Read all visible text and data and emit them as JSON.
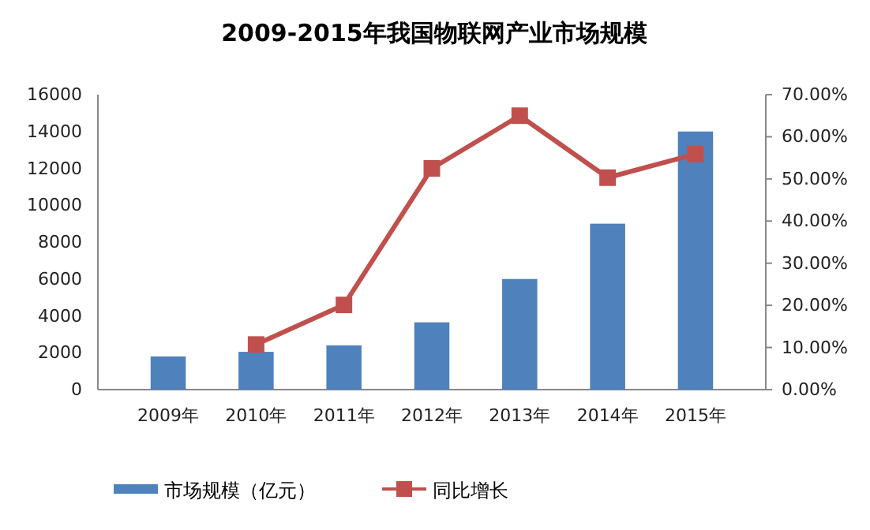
{
  "chart_data": {
    "type": "bar",
    "title": "2009-2015年我国物联网产业市场规模",
    "categories": [
      "2009年",
      "2010年",
      "2011年",
      "2012年",
      "2013年",
      "2014年",
      "2015年"
    ],
    "series": [
      {
        "name": "市场规模（亿元）",
        "color": "#4f81bd",
        "values": [
          1800,
          2050,
          2400,
          3650,
          6000,
          9000,
          14000
        ]
      },
      {
        "name": "同比增长",
        "type": "line",
        "axis": "y2",
        "color": "#c0504d",
        "marker": "square",
        "values": [
          null,
          10.7,
          20.1,
          52.5,
          65,
          50.3,
          55.9
        ]
      }
    ],
    "ylim": [
      0,
      16000
    ],
    "yticks": [
      0,
      2000,
      4000,
      6000,
      8000,
      10000,
      12000,
      14000,
      16000
    ],
    "y2lim": [
      0,
      70
    ],
    "y2ticks": [
      {
        "value": 0,
        "label": "0.00%"
      },
      {
        "value": 10,
        "label": "10.00%"
      },
      {
        "value": 20,
        "label": "20.00%"
      },
      {
        "value": 30,
        "label": "30.00%"
      },
      {
        "value": 40,
        "label": "40.00%"
      },
      {
        "value": 50,
        "label": "50.00%"
      },
      {
        "value": 60,
        "label": "60.00%"
      },
      {
        "value": 70,
        "label": "70.00%"
      }
    ],
    "legend": "bottom"
  }
}
